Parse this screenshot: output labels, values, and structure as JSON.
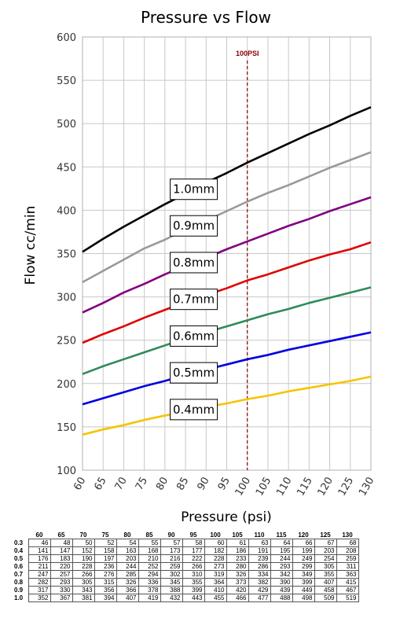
{
  "chart_data": {
    "type": "line",
    "title": "Pressure vs Flow",
    "xlabel": "Pressure (psi)",
    "ylabel": "Flow cc/min",
    "xlim": [
      60,
      130
    ],
    "ylim": [
      100,
      600
    ],
    "x_ticks": [
      60,
      65,
      70,
      75,
      80,
      85,
      90,
      95,
      100,
      105,
      110,
      115,
      120,
      125,
      130
    ],
    "y_ticks": [
      100,
      150,
      200,
      250,
      300,
      350,
      400,
      450,
      500,
      550,
      600
    ],
    "grid": true,
    "reference_line": {
      "x": 100,
      "label": "100PSI",
      "color": "#8b0000"
    },
    "x": [
      60,
      65,
      70,
      75,
      80,
      85,
      90,
      95,
      100,
      105,
      110,
      115,
      120,
      125,
      130
    ],
    "series": [
      {
        "name": "0.4mm",
        "color": "#f5c400",
        "label_at_x": 87,
        "values": [
          141,
          147,
          152,
          158,
          163,
          168,
          173,
          177,
          182,
          186,
          191,
          195,
          199,
          203,
          208
        ]
      },
      {
        "name": "0.5mm",
        "color": "#0000e0",
        "label_at_x": 87,
        "values": [
          176,
          183,
          190,
          197,
          203,
          210,
          216,
          222,
          228,
          233,
          239,
          244,
          249,
          254,
          259
        ]
      },
      {
        "name": "0.6mm",
        "color": "#2e8b57",
        "label_at_x": 87,
        "values": [
          211,
          220,
          228,
          236,
          244,
          252,
          259,
          266,
          273,
          280,
          286,
          293,
          299,
          305,
          311
        ]
      },
      {
        "name": "0.7mm",
        "color": "#e00000",
        "label_at_x": 87,
        "values": [
          247,
          257,
          266,
          276,
          285,
          294,
          302,
          310,
          319,
          326,
          334,
          342,
          349,
          355,
          363
        ]
      },
      {
        "name": "0.8mm",
        "color": "#800080",
        "label_at_x": 87,
        "values": [
          282,
          293,
          305,
          315,
          326,
          336,
          345,
          355,
          364,
          373,
          382,
          390,
          399,
          407,
          415
        ]
      },
      {
        "name": "0.9mm",
        "color": "#999999",
        "label_at_x": 87,
        "values": [
          317,
          330,
          343,
          356,
          366,
          378,
          388,
          399,
          410,
          420,
          429,
          439,
          449,
          458,
          467
        ]
      },
      {
        "name": "1.0mm",
        "color": "#000000",
        "label_at_x": 87,
        "values": [
          352,
          367,
          381,
          394,
          407,
          419,
          432,
          443,
          455,
          466,
          477,
          488,
          498,
          509,
          519
        ]
      }
    ]
  },
  "table": {
    "columns": [
      "60",
      "65",
      "70",
      "75",
      "80",
      "85",
      "90",
      "95",
      "100",
      "105",
      "110",
      "115",
      "120",
      "125",
      "130"
    ],
    "rows": [
      {
        "label": "0.3",
        "values": [
          "46",
          "48",
          "50",
          "52",
          "54",
          "55",
          "57",
          "58",
          "60",
          "61",
          "63",
          "64",
          "66",
          "67",
          "68"
        ]
      },
      {
        "label": "0.4",
        "values": [
          "141",
          "147",
          "152",
          "158",
          "163",
          "168",
          "173",
          "177",
          "182",
          "186",
          "191",
          "195",
          "199",
          "203",
          "208"
        ]
      },
      {
        "label": "0.5",
        "values": [
          "176",
          "183",
          "190",
          "197",
          "203",
          "210",
          "216",
          "222",
          "228",
          "233",
          "239",
          "244",
          "249",
          "254",
          "259"
        ]
      },
      {
        "label": "0.6",
        "values": [
          "211",
          "220",
          "228",
          "236",
          "244",
          "252",
          "259",
          "266",
          "273",
          "280",
          "286",
          "293",
          "299",
          "305",
          "311"
        ]
      },
      {
        "label": "0.7",
        "values": [
          "247",
          "257",
          "266",
          "276",
          "285",
          "294",
          "302",
          "310",
          "319",
          "326",
          "334",
          "342",
          "349",
          "355",
          "363"
        ]
      },
      {
        "label": "0.8",
        "values": [
          "282",
          "293",
          "305",
          "315",
          "326",
          "336",
          "345",
          "355",
          "364",
          "373",
          "382",
          "390",
          "399",
          "407",
          "415"
        ]
      },
      {
        "label": "0.9",
        "values": [
          "317",
          "330",
          "343",
          "356",
          "366",
          "378",
          "388",
          "399",
          "410",
          "420",
          "429",
          "439",
          "449",
          "458",
          "467"
        ]
      },
      {
        "label": "1.0",
        "values": [
          "352",
          "367",
          "381",
          "394",
          "407",
          "419",
          "432",
          "443",
          "455",
          "466",
          "477",
          "488",
          "498",
          "509",
          "519"
        ]
      }
    ]
  }
}
